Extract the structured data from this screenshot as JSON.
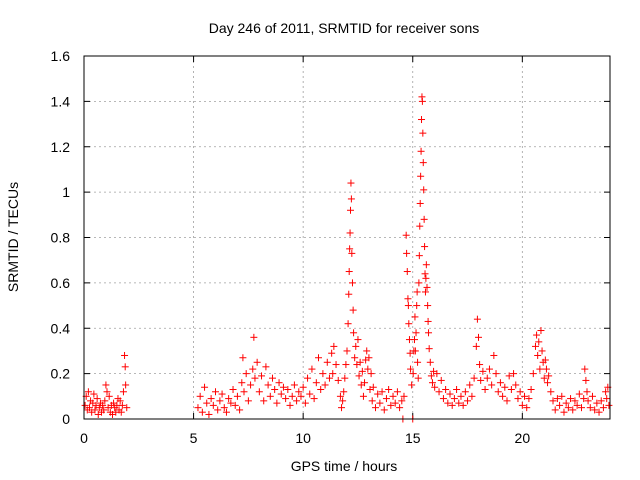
{
  "chart_data": {
    "type": "scatter",
    "title": "Day 246 of 2011, SRMTID for receiver sons",
    "xlabel": "GPS time / hours",
    "ylabel": "SRMTID / TECUs",
    "xlim": [
      0,
      24
    ],
    "ylim": [
      0,
      1.6
    ],
    "xticks": [
      {
        "value": 0,
        "label": "0"
      },
      {
        "value": 5,
        "label": "5"
      },
      {
        "value": 10,
        "label": "10"
      },
      {
        "value": 15,
        "label": "15"
      },
      {
        "value": 20,
        "label": "20"
      }
    ],
    "yticks": [
      {
        "value": 0,
        "label": "0"
      },
      {
        "value": 0.2,
        "label": "0.2"
      },
      {
        "value": 0.4,
        "label": "0.4"
      },
      {
        "value": 0.6,
        "label": "0.6"
      },
      {
        "value": 0.8,
        "label": "0.8"
      },
      {
        "value": 1.0,
        "label": "1"
      },
      {
        "value": 1.2,
        "label": "1.2"
      },
      {
        "value": 1.4,
        "label": "1.4"
      },
      {
        "value": 1.6,
        "label": "1.6"
      }
    ],
    "grid": true,
    "marker": "+",
    "series": [
      {
        "name": "SRMTID",
        "color": "#ff0000",
        "points": [
          [
            0.05,
            0.06
          ],
          [
            0.1,
            0.1
          ],
          [
            0.15,
            0.04
          ],
          [
            0.2,
            0.12
          ],
          [
            0.25,
            0.05
          ],
          [
            0.3,
            0.08
          ],
          [
            0.35,
            0.03
          ],
          [
            0.4,
            0.07
          ],
          [
            0.45,
            0.11
          ],
          [
            0.5,
            0.04
          ],
          [
            0.55,
            0.06
          ],
          [
            0.6,
            0.09
          ],
          [
            0.65,
            0.02
          ],
          [
            0.7,
            0.05
          ],
          [
            0.75,
            0.07
          ],
          [
            0.8,
            0.03
          ],
          [
            0.85,
            0.06
          ],
          [
            0.9,
            0.04
          ],
          [
            0.95,
            0.08
          ],
          [
            1.0,
            0.15
          ],
          [
            1.05,
            0.12
          ],
          [
            1.1,
            0.05
          ],
          [
            1.15,
            0.1
          ],
          [
            1.2,
            0.03
          ],
          [
            1.25,
            0.06
          ],
          [
            1.3,
            0.02
          ],
          [
            1.35,
            0.07
          ],
          [
            1.4,
            0.05
          ],
          [
            1.45,
            0.03
          ],
          [
            1.5,
            0.06
          ],
          [
            1.55,
            0.09
          ],
          [
            1.6,
            0.04
          ],
          [
            1.65,
            0.08
          ],
          [
            1.7,
            0.03
          ],
          [
            1.75,
            0.06
          ],
          [
            1.8,
            0.12
          ],
          [
            1.85,
            0.28
          ],
          [
            1.88,
            0.23
          ],
          [
            1.9,
            0.15
          ],
          [
            1.95,
            0.05
          ],
          [
            5.2,
            0.05
          ],
          [
            5.3,
            0.1
          ],
          [
            5.4,
            0.03
          ],
          [
            5.5,
            0.14
          ],
          [
            5.6,
            0.07
          ],
          [
            5.7,
            0.02
          ],
          [
            5.8,
            0.09
          ],
          [
            5.9,
            0.06
          ],
          [
            6.0,
            0.12
          ],
          [
            6.1,
            0.04
          ],
          [
            6.2,
            0.08
          ],
          [
            6.3,
            0.11
          ],
          [
            6.4,
            0.05
          ],
          [
            6.5,
            0.03
          ],
          [
            6.6,
            0.09
          ],
          [
            6.7,
            0.07
          ],
          [
            6.8,
            0.13
          ],
          [
            6.9,
            0.06
          ],
          [
            7.0,
            0.1
          ],
          [
            7.1,
            0.04
          ],
          [
            7.2,
            0.16
          ],
          [
            7.25,
            0.27
          ],
          [
            7.3,
            0.12
          ],
          [
            7.4,
            0.2
          ],
          [
            7.5,
            0.08
          ],
          [
            7.6,
            0.15
          ],
          [
            7.7,
            0.22
          ],
          [
            7.75,
            0.36
          ],
          [
            7.8,
            0.18
          ],
          [
            7.9,
            0.25
          ],
          [
            8.0,
            0.12
          ],
          [
            8.1,
            0.19
          ],
          [
            8.2,
            0.08
          ],
          [
            8.3,
            0.23
          ],
          [
            8.4,
            0.15
          ],
          [
            8.5,
            0.1
          ],
          [
            8.6,
            0.18
          ],
          [
            8.7,
            0.13
          ],
          [
            8.8,
            0.07
          ],
          [
            8.9,
            0.16
          ],
          [
            9.0,
            0.11
          ],
          [
            9.1,
            0.14
          ],
          [
            9.2,
            0.09
          ],
          [
            9.3,
            0.13
          ],
          [
            9.4,
            0.06
          ],
          [
            9.5,
            0.1
          ],
          [
            9.6,
            0.15
          ],
          [
            9.7,
            0.08
          ],
          [
            9.8,
            0.12
          ],
          [
            9.9,
            0.1
          ],
          [
            10.0,
            0.14
          ],
          [
            10.1,
            0.07
          ],
          [
            10.2,
            0.18
          ],
          [
            10.3,
            0.11
          ],
          [
            10.4,
            0.22
          ],
          [
            10.5,
            0.09
          ],
          [
            10.6,
            0.16
          ],
          [
            10.7,
            0.27
          ],
          [
            10.8,
            0.13
          ],
          [
            10.9,
            0.2
          ],
          [
            11.0,
            0.15
          ],
          [
            11.1,
            0.25
          ],
          [
            11.2,
            0.18
          ],
          [
            11.3,
            0.29
          ],
          [
            11.35,
            0.2
          ],
          [
            11.4,
            0.32
          ],
          [
            11.5,
            0.24
          ],
          [
            11.6,
            0.17
          ],
          [
            11.7,
            0.1
          ],
          [
            11.75,
            0.05
          ],
          [
            11.8,
            0.08
          ],
          [
            11.85,
            0.12
          ],
          [
            11.9,
            0.18
          ],
          [
            11.95,
            0.24
          ],
          [
            12.0,
            0.3
          ],
          [
            12.05,
            0.42
          ],
          [
            12.08,
            0.55
          ],
          [
            12.1,
            0.65
          ],
          [
            12.12,
            0.75
          ],
          [
            12.14,
            0.82
          ],
          [
            12.16,
            0.92
          ],
          [
            12.18,
            1.04
          ],
          [
            12.2,
            0.97
          ],
          [
            12.22,
            0.73
          ],
          [
            12.25,
            0.6
          ],
          [
            12.28,
            0.48
          ],
          [
            12.3,
            0.38
          ],
          [
            12.35,
            0.27
          ],
          [
            12.4,
            0.32
          ],
          [
            12.45,
            0.24
          ],
          [
            12.5,
            0.35
          ],
          [
            12.55,
            0.19
          ],
          [
            12.6,
            0.25
          ],
          [
            12.65,
            0.15
          ],
          [
            12.7,
            0.21
          ],
          [
            12.75,
            0.1
          ],
          [
            12.8,
            0.16
          ],
          [
            12.85,
            0.26
          ],
          [
            12.9,
            0.3
          ],
          [
            12.95,
            0.22
          ],
          [
            13.0,
            0.27
          ],
          [
            13.05,
            0.13
          ],
          [
            13.1,
            0.2
          ],
          [
            13.15,
            0.08
          ],
          [
            13.2,
            0.14
          ],
          [
            13.3,
            0.05
          ],
          [
            13.4,
            0.11
          ],
          [
            13.5,
            0.07
          ],
          [
            13.6,
            0.12
          ],
          [
            13.7,
            0.04
          ],
          [
            13.8,
            0.09
          ],
          [
            13.9,
            0.13
          ],
          [
            14.0,
            0.06
          ],
          [
            14.1,
            0.1
          ],
          [
            14.2,
            0.07
          ],
          [
            14.3,
            0.12
          ],
          [
            14.4,
            0.05
          ],
          [
            14.5,
            0.08
          ],
          [
            14.55,
            0.0
          ],
          [
            14.6,
            0.1
          ],
          [
            14.7,
            0.81
          ],
          [
            14.72,
            0.73
          ],
          [
            14.75,
            0.65
          ],
          [
            14.78,
            0.53
          ],
          [
            14.8,
            0.5
          ],
          [
            14.82,
            0.42
          ],
          [
            14.85,
            0.35
          ],
          [
            14.88,
            0.29
          ],
          [
            14.9,
            0.22
          ],
          [
            14.95,
            0.15
          ],
          [
            15.0,
            0.0
          ],
          [
            15.02,
            0.2
          ],
          [
            15.05,
            0.3
          ],
          [
            15.08,
            0.35
          ],
          [
            15.1,
            0.45
          ],
          [
            15.12,
            0.3
          ],
          [
            15.15,
            0.38
          ],
          [
            15.18,
            0.5
          ],
          [
            15.2,
            0.56
          ],
          [
            15.22,
            0.25
          ],
          [
            15.25,
            0.18
          ],
          [
            15.28,
            0.6
          ],
          [
            15.3,
            0.72
          ],
          [
            15.32,
            0.85
          ],
          [
            15.34,
            0.95
          ],
          [
            15.36,
            1.07
          ],
          [
            15.38,
            1.18
          ],
          [
            15.4,
            1.32
          ],
          [
            15.42,
            1.42
          ],
          [
            15.44,
            1.4
          ],
          [
            15.46,
            1.26
          ],
          [
            15.48,
            1.13
          ],
          [
            15.5,
            1.01
          ],
          [
            15.52,
            0.88
          ],
          [
            15.54,
            0.76
          ],
          [
            15.56,
            0.64
          ],
          [
            15.58,
            0.56
          ],
          [
            15.6,
            0.62
          ],
          [
            15.62,
            0.68
          ],
          [
            15.65,
            0.58
          ],
          [
            15.68,
            0.5
          ],
          [
            15.7,
            0.43
          ],
          [
            15.72,
            0.38
          ],
          [
            15.75,
            0.31
          ],
          [
            15.8,
            0.25
          ],
          [
            15.85,
            0.19
          ],
          [
            15.9,
            0.16
          ],
          [
            15.95,
            0.21
          ],
          [
            16.0,
            0.14
          ],
          [
            16.1,
            0.2
          ],
          [
            16.2,
            0.12
          ],
          [
            16.3,
            0.17
          ],
          [
            16.4,
            0.09
          ],
          [
            16.5,
            0.13
          ],
          [
            16.6,
            0.07
          ],
          [
            16.7,
            0.11
          ],
          [
            16.8,
            0.06
          ],
          [
            16.9,
            0.09
          ],
          [
            17.0,
            0.13
          ],
          [
            17.1,
            0.07
          ],
          [
            17.2,
            0.1
          ],
          [
            17.3,
            0.06
          ],
          [
            17.4,
            0.12
          ],
          [
            17.5,
            0.08
          ],
          [
            17.6,
            0.15
          ],
          [
            17.7,
            0.1
          ],
          [
            17.8,
            0.18
          ],
          [
            17.9,
            0.32
          ],
          [
            17.95,
            0.44
          ],
          [
            18.0,
            0.36
          ],
          [
            18.05,
            0.24
          ],
          [
            18.1,
            0.17
          ],
          [
            18.2,
            0.21
          ],
          [
            18.3,
            0.13
          ],
          [
            18.4,
            0.18
          ],
          [
            18.5,
            0.22
          ],
          [
            18.6,
            0.15
          ],
          [
            18.7,
            0.28
          ],
          [
            18.8,
            0.2
          ],
          [
            18.9,
            0.12
          ],
          [
            19.0,
            0.16
          ],
          [
            19.1,
            0.1
          ],
          [
            19.2,
            0.14
          ],
          [
            19.3,
            0.08
          ],
          [
            19.4,
            0.19
          ],
          [
            19.5,
            0.13
          ],
          [
            19.6,
            0.2
          ],
          [
            19.7,
            0.15
          ],
          [
            19.8,
            0.09
          ],
          [
            19.9,
            0.12
          ],
          [
            20.0,
            0.06
          ],
          [
            20.1,
            0.1
          ],
          [
            20.2,
            0.05
          ],
          [
            20.3,
            0.09
          ],
          [
            20.4,
            0.13
          ],
          [
            20.5,
            0.2
          ],
          [
            20.6,
            0.32
          ],
          [
            20.65,
            0.37
          ],
          [
            20.7,
            0.28
          ],
          [
            20.75,
            0.34
          ],
          [
            20.8,
            0.22
          ],
          [
            20.85,
            0.39
          ],
          [
            20.9,
            0.3
          ],
          [
            20.95,
            0.25
          ],
          [
            21.0,
            0.18
          ],
          [
            21.05,
            0.26
          ],
          [
            21.1,
            0.22
          ],
          [
            21.15,
            0.16
          ],
          [
            21.2,
            0.19
          ],
          [
            21.3,
            0.12
          ],
          [
            21.4,
            0.08
          ],
          [
            21.5,
            0.04
          ],
          [
            21.6,
            0.09
          ],
          [
            21.7,
            0.06
          ],
          [
            21.8,
            0.1
          ],
          [
            21.9,
            0.03
          ],
          [
            22.0,
            0.07
          ],
          [
            22.1,
            0.05
          ],
          [
            22.2,
            0.09
          ],
          [
            22.3,
            0.04
          ],
          [
            22.4,
            0.08
          ],
          [
            22.5,
            0.06
          ],
          [
            22.6,
            0.11
          ],
          [
            22.7,
            0.05
          ],
          [
            22.8,
            0.09
          ],
          [
            22.85,
            0.22
          ],
          [
            22.9,
            0.17
          ],
          [
            22.95,
            0.12
          ],
          [
            23.0,
            0.08
          ],
          [
            23.1,
            0.05
          ],
          [
            23.2,
            0.1
          ],
          [
            23.3,
            0.04
          ],
          [
            23.4,
            0.07
          ],
          [
            23.5,
            0.03
          ],
          [
            23.6,
            0.08
          ],
          [
            23.7,
            0.05
          ],
          [
            23.8,
            0.12
          ],
          [
            23.85,
            0.09
          ],
          [
            23.9,
            0.14
          ],
          [
            23.95,
            0.06
          ]
        ]
      }
    ]
  }
}
